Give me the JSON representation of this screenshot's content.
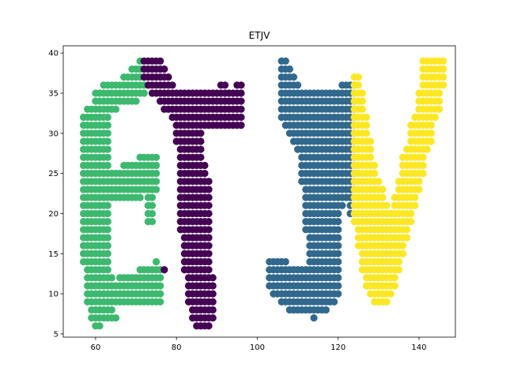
{
  "chart_data": {
    "type": "scatter",
    "title": "ETJV",
    "xlabel": "",
    "ylabel": "",
    "xlim": [
      52,
      149
    ],
    "ylim": [
      4.6,
      40.9
    ],
    "xticks": [
      60,
      80,
      100,
      120,
      140
    ],
    "yticks": [
      5,
      10,
      15,
      20,
      25,
      30,
      35,
      40
    ],
    "grid": false,
    "legend": "none",
    "series": [
      {
        "color": "#3cb96e",
        "rows": [
          [
            39,
            71,
            72
          ],
          [
            38,
            69,
            72
          ],
          [
            37,
            67,
            72
          ],
          [
            36,
            62,
            72
          ],
          [
            35,
            60,
            72
          ],
          [
            34,
            60,
            70
          ],
          [
            33,
            58,
            65
          ],
          [
            32,
            57,
            63
          ],
          [
            31,
            57,
            63
          ],
          [
            30,
            57,
            63
          ],
          [
            29,
            57,
            63
          ],
          [
            28,
            57,
            63
          ],
          [
            27,
            57,
            63
          ],
          [
            27,
            71,
            75
          ],
          [
            26,
            57,
            63
          ],
          [
            26,
            67,
            75
          ],
          [
            25,
            57,
            75
          ],
          [
            24,
            57,
            75
          ],
          [
            23,
            57,
            75
          ],
          [
            22,
            57,
            71
          ],
          [
            22,
            73,
            74
          ],
          [
            21,
            57,
            63
          ],
          [
            21,
            73,
            74
          ],
          [
            20,
            57,
            63
          ],
          [
            20,
            73,
            74
          ],
          [
            19,
            57,
            63
          ],
          [
            19,
            73,
            74
          ],
          [
            18,
            57,
            63
          ],
          [
            17,
            57,
            63
          ],
          [
            16,
            57,
            63
          ],
          [
            15,
            57,
            63
          ],
          [
            14,
            57,
            63
          ],
          [
            14,
            75,
            75
          ],
          [
            13,
            58,
            63
          ],
          [
            13,
            71,
            76
          ],
          [
            12,
            58,
            64
          ],
          [
            12,
            66,
            76
          ],
          [
            11,
            58,
            76
          ],
          [
            10,
            58,
            76
          ],
          [
            9,
            58,
            76
          ],
          [
            8,
            59,
            64
          ],
          [
            7,
            59,
            65
          ],
          [
            6,
            60,
            61
          ]
        ]
      },
      {
        "color": "#440154",
        "rows": [
          [
            39,
            72,
            76
          ],
          [
            38,
            72,
            77
          ],
          [
            37,
            72,
            78
          ],
          [
            36,
            73,
            79
          ],
          [
            36,
            91,
            92
          ],
          [
            36,
            95,
            96
          ],
          [
            35,
            74,
            96
          ],
          [
            34,
            76,
            96
          ],
          [
            33,
            77,
            96
          ],
          [
            32,
            79,
            96
          ],
          [
            31,
            80,
            96
          ],
          [
            30,
            80,
            86
          ],
          [
            29,
            80,
            86
          ],
          [
            28,
            81,
            86
          ],
          [
            27,
            81,
            86
          ],
          [
            26,
            81,
            87
          ],
          [
            25,
            81,
            87
          ],
          [
            24,
            81,
            88
          ],
          [
            23,
            81,
            88
          ],
          [
            22,
            81,
            88
          ],
          [
            21,
            81,
            88
          ],
          [
            20,
            81,
            88
          ],
          [
            19,
            81,
            88
          ],
          [
            18,
            81,
            88
          ],
          [
            17,
            82,
            88
          ],
          [
            16,
            82,
            88
          ],
          [
            15,
            82,
            88
          ],
          [
            14,
            82,
            88
          ],
          [
            13,
            82,
            88
          ],
          [
            13,
            77,
            77
          ],
          [
            12,
            83,
            89
          ],
          [
            11,
            83,
            89
          ],
          [
            10,
            83,
            89
          ],
          [
            9,
            83,
            89
          ],
          [
            8,
            84,
            89
          ],
          [
            7,
            84,
            89
          ],
          [
            6,
            85,
            88
          ]
        ]
      },
      {
        "color": "#31688e",
        "rows": [
          [
            39,
            106,
            107
          ],
          [
            38,
            106,
            108
          ],
          [
            37,
            106,
            109
          ],
          [
            36,
            106,
            110
          ],
          [
            36,
            121,
            124
          ],
          [
            35,
            106,
            124
          ],
          [
            34,
            106,
            124
          ],
          [
            33,
            106,
            124
          ],
          [
            32,
            106,
            124
          ],
          [
            31,
            107,
            124
          ],
          [
            30,
            108,
            124
          ],
          [
            29,
            109,
            124
          ],
          [
            28,
            110,
            124
          ],
          [
            27,
            111,
            124
          ],
          [
            26,
            111,
            124
          ],
          [
            25,
            111,
            124
          ],
          [
            24,
            111,
            124
          ],
          [
            23,
            112,
            124
          ],
          [
            22,
            112,
            123
          ],
          [
            21,
            112,
            121
          ],
          [
            21,
            123,
            123
          ],
          [
            20,
            112,
            120
          ],
          [
            20,
            123,
            123
          ],
          [
            19,
            112,
            120
          ],
          [
            18,
            112,
            120
          ],
          [
            17,
            113,
            120
          ],
          [
            16,
            113,
            120
          ],
          [
            15,
            113,
            120
          ],
          [
            14,
            103,
            107
          ],
          [
            14,
            113,
            120
          ],
          [
            13,
            103,
            120
          ],
          [
            12,
            103,
            120
          ],
          [
            11,
            103,
            120
          ],
          [
            10,
            104,
            120
          ],
          [
            9,
            106,
            119
          ],
          [
            8,
            108,
            117
          ],
          [
            7,
            114,
            114
          ]
        ]
      },
      {
        "color": "#fde725",
        "rows": [
          [
            39,
            141,
            146
          ],
          [
            38,
            141,
            146
          ],
          [
            37,
            124,
            125
          ],
          [
            37,
            141,
            146
          ],
          [
            36,
            124,
            125
          ],
          [
            36,
            141,
            146
          ],
          [
            35,
            124,
            126
          ],
          [
            35,
            140,
            145
          ],
          [
            34,
            124,
            126
          ],
          [
            34,
            140,
            145
          ],
          [
            33,
            124,
            126
          ],
          [
            33,
            140,
            145
          ],
          [
            32,
            124,
            127
          ],
          [
            32,
            139,
            144
          ],
          [
            31,
            124,
            127
          ],
          [
            31,
            138,
            143
          ],
          [
            30,
            124,
            127
          ],
          [
            30,
            138,
            143
          ],
          [
            29,
            124,
            128
          ],
          [
            29,
            138,
            143
          ],
          [
            28,
            124,
            128
          ],
          [
            28,
            137,
            142
          ],
          [
            27,
            124,
            128
          ],
          [
            27,
            136,
            141
          ],
          [
            26,
            124,
            129
          ],
          [
            26,
            136,
            141
          ],
          [
            25,
            124,
            129
          ],
          [
            25,
            136,
            141
          ],
          [
            24,
            124,
            130
          ],
          [
            24,
            135,
            140
          ],
          [
            23,
            124,
            131
          ],
          [
            23,
            135,
            140
          ],
          [
            22,
            124,
            131
          ],
          [
            22,
            134,
            139
          ],
          [
            21,
            124,
            132
          ],
          [
            21,
            134,
            139
          ],
          [
            20,
            124,
            133
          ],
          [
            20,
            133,
            138
          ],
          [
            19,
            124,
            138
          ],
          [
            18,
            125,
            137
          ],
          [
            17,
            125,
            137
          ],
          [
            16,
            125,
            136
          ],
          [
            15,
            126,
            136
          ],
          [
            14,
            126,
            135
          ],
          [
            13,
            126,
            135
          ],
          [
            12,
            127,
            134
          ],
          [
            11,
            127,
            134
          ],
          [
            10,
            128,
            133
          ],
          [
            9,
            129,
            132
          ]
        ]
      }
    ]
  }
}
